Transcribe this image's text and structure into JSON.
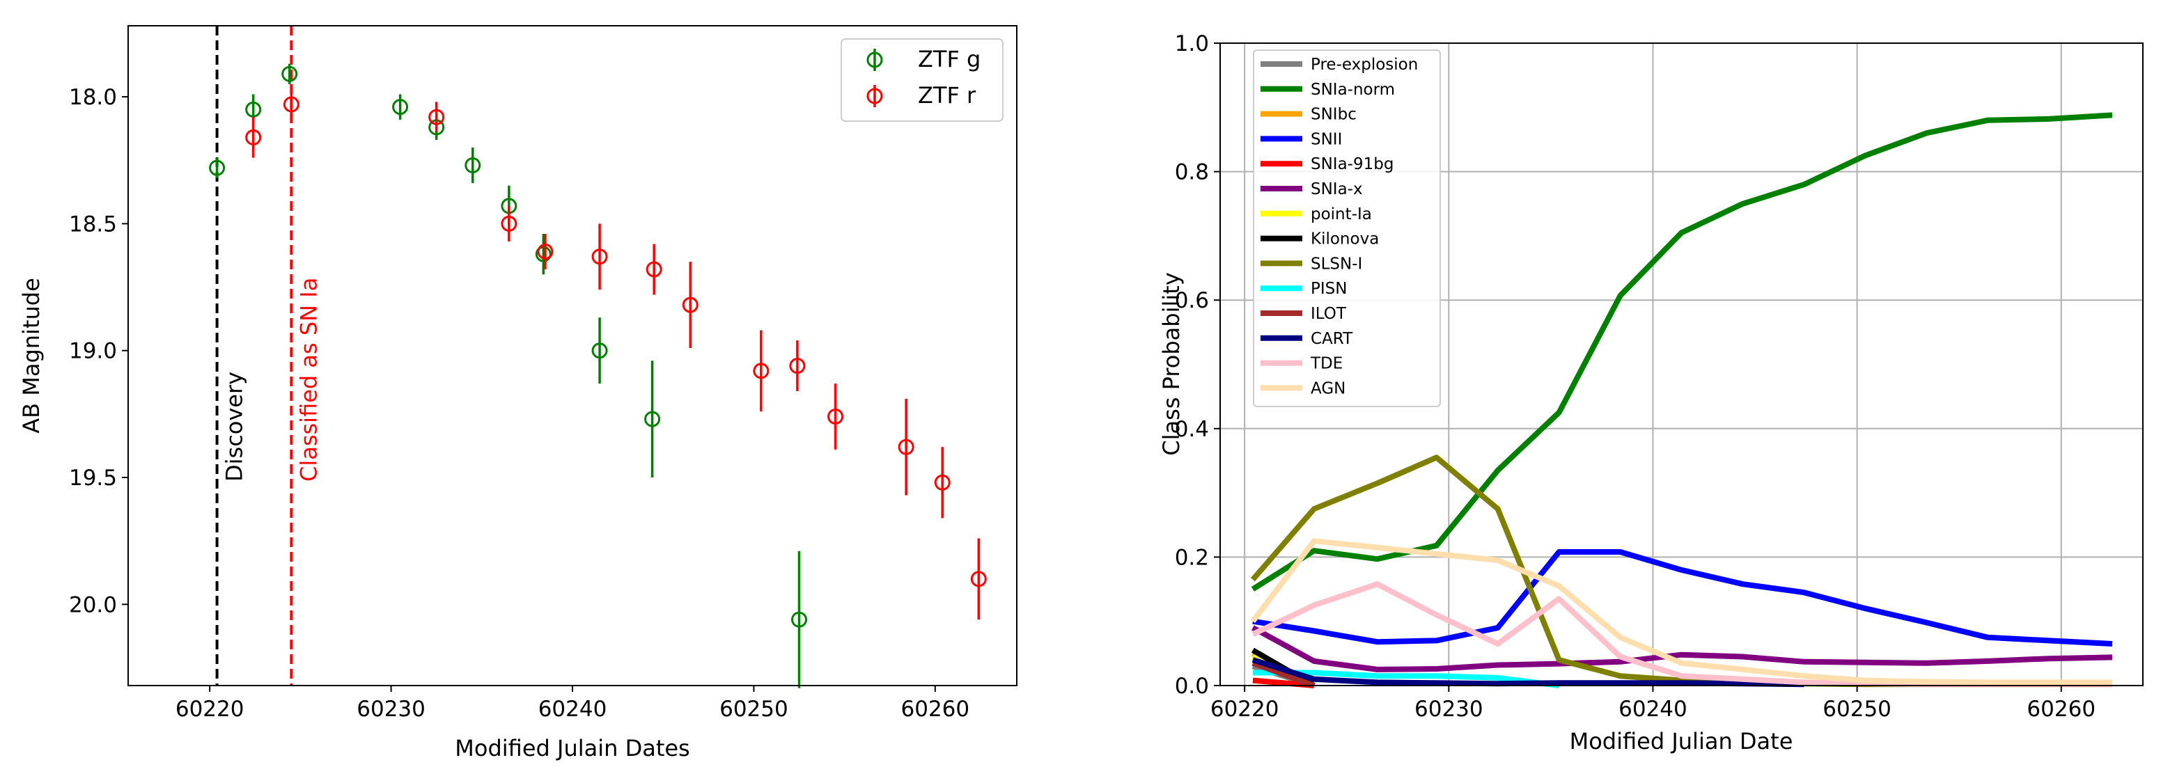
{
  "chart_data": [
    {
      "type": "scatter",
      "title": "",
      "xlabel": "Modified Julain Dates",
      "ylabel": "AB Magnitude",
      "xlim": [
        60215.5,
        60264.5
      ],
      "ylim": [
        20.32,
        17.72
      ],
      "y_inverted": true,
      "grid": false,
      "legend_position": "top-right",
      "xticks": [
        60220,
        60230,
        60240,
        60250,
        60260
      ],
      "yticks": [
        18.0,
        18.5,
        19.0,
        19.5,
        20.0
      ],
      "ytick_labels": [
        "18.0",
        "18.5",
        "19.0",
        "19.5",
        "20.0"
      ],
      "series": [
        {
          "name": "ZTF g",
          "color": "#008000",
          "points": [
            {
              "x": 60220.4,
              "y": 18.28,
              "err": 0.04
            },
            {
              "x": 60222.4,
              "y": 18.05,
              "err": 0.06
            },
            {
              "x": 60224.4,
              "y": 17.91,
              "err": 0.04
            },
            {
              "x": 60230.5,
              "y": 18.04,
              "err": 0.05
            },
            {
              "x": 60232.5,
              "y": 18.12,
              "err": 0.05
            },
            {
              "x": 60234.5,
              "y": 18.27,
              "err": 0.07
            },
            {
              "x": 60236.5,
              "y": 18.43,
              "err": 0.08
            },
            {
              "x": 60238.4,
              "y": 18.62,
              "err": 0.08
            },
            {
              "x": 60241.5,
              "y": 19.0,
              "err": 0.13
            },
            {
              "x": 60244.4,
              "y": 19.27,
              "err": 0.23
            },
            {
              "x": 60252.5,
              "y": 20.06,
              "err": 0.27
            }
          ]
        },
        {
          "name": "ZTF r",
          "color": "#ff0000",
          "points": [
            {
              "x": 60222.4,
              "y": 18.16,
              "err": 0.08
            },
            {
              "x": 60224.5,
              "y": 18.03,
              "err": 0.05
            },
            {
              "x": 60232.5,
              "y": 18.08,
              "err": 0.06
            },
            {
              "x": 60236.5,
              "y": 18.5,
              "err": 0.07
            },
            {
              "x": 60238.5,
              "y": 18.61,
              "err": 0.07
            },
            {
              "x": 60241.5,
              "y": 18.63,
              "err": 0.13
            },
            {
              "x": 60244.5,
              "y": 18.68,
              "err": 0.1
            },
            {
              "x": 60246.5,
              "y": 18.82,
              "err": 0.17
            },
            {
              "x": 60250.4,
              "y": 19.08,
              "err": 0.16
            },
            {
              "x": 60252.4,
              "y": 19.06,
              "err": 0.1
            },
            {
              "x": 60254.5,
              "y": 19.26,
              "err": 0.13
            },
            {
              "x": 60258.4,
              "y": 19.38,
              "err": 0.19
            },
            {
              "x": 60260.4,
              "y": 19.52,
              "err": 0.14
            },
            {
              "x": 60262.4,
              "y": 19.9,
              "err": 0.16
            }
          ]
        }
      ],
      "annotations": [
        {
          "text": "Discovery",
          "x": 60220.4,
          "color": "#000000",
          "line": "dashed"
        },
        {
          "text": "Classified as SN Ia",
          "x": 60224.5,
          "color": "#ff0000",
          "line": "dashed"
        }
      ]
    },
    {
      "type": "line",
      "title": "",
      "xlabel": "Modified Julian Date",
      "ylabel": "Class Probability",
      "xlim": [
        60218.8,
        60264.0
      ],
      "ylim": [
        0.0,
        1.0
      ],
      "grid": true,
      "legend_position": "top-left",
      "xticks": [
        60220,
        60230,
        60240,
        60250,
        60260
      ],
      "yticks": [
        0.0,
        0.2,
        0.4,
        0.6,
        0.8,
        1.0
      ],
      "ytick_labels": [
        "0.0",
        "0.2",
        "0.4",
        "0.6",
        "0.8",
        "1.0"
      ],
      "series": [
        {
          "name": "Pre-explosion",
          "color": "#808080",
          "x": [
            60220.4,
            60223.4
          ],
          "values": [
            0.03,
            0.0
          ]
        },
        {
          "name": "SNIa-norm",
          "color": "#008000",
          "x": [
            60220.4,
            60223.4,
            60226.5,
            60229.4,
            60232.4,
            60235.4,
            60238.4,
            60241.4,
            60244.4,
            60247.4,
            60250.4,
            60253.4,
            60256.4,
            60259.4,
            60262.5
          ],
          "values": [
            0.15,
            0.21,
            0.197,
            0.218,
            0.335,
            0.425,
            0.607,
            0.705,
            0.75,
            0.78,
            0.825,
            0.86,
            0.88,
            0.882,
            0.888
          ]
        },
        {
          "name": "SNIbc",
          "color": "#ffa500",
          "x": [
            60220.4,
            60223.4
          ],
          "values": [
            0.05,
            0.0
          ]
        },
        {
          "name": "SNII",
          "color": "#0000ff",
          "x": [
            60220.4,
            60223.4,
            60226.5,
            60229.4,
            60232.4,
            60235.4,
            60238.4,
            60241.4,
            60244.4,
            60247.4,
            60250.4,
            60253.4,
            60256.4,
            60259.4,
            60262.5
          ],
          "values": [
            0.1,
            0.085,
            0.068,
            0.07,
            0.09,
            0.208,
            0.208,
            0.18,
            0.158,
            0.145,
            0.12,
            0.098,
            0.075,
            0.07,
            0.065
          ]
        },
        {
          "name": "SNIa-91bg",
          "color": "#ff0000",
          "x": [
            60220.4,
            60223.4
          ],
          "values": [
            0.008,
            0.0
          ]
        },
        {
          "name": "SNIa-x",
          "color": "#800080",
          "x": [
            60220.4,
            60223.4,
            60226.5,
            60229.4,
            60232.4,
            60235.4,
            60238.4,
            60241.4,
            60244.4,
            60247.4,
            60250.4,
            60253.4,
            60256.4,
            60259.4,
            60262.5
          ],
          "values": [
            0.09,
            0.038,
            0.025,
            0.026,
            0.032,
            0.034,
            0.037,
            0.048,
            0.045,
            0.037,
            0.036,
            0.035,
            0.038,
            0.042,
            0.044
          ]
        },
        {
          "name": "point-Ia",
          "color": "#ffff00",
          "x": [
            60220.4,
            60223.4
          ],
          "values": [
            0.045,
            0.0
          ]
        },
        {
          "name": "Kilonova",
          "color": "#000000",
          "x": [
            60220.4,
            60223.4
          ],
          "values": [
            0.055,
            0.0
          ]
        },
        {
          "name": "SLSN-I",
          "color": "#808000",
          "x": [
            60220.4,
            60223.4,
            60226.5,
            60229.4,
            60232.4,
            60235.4,
            60238.4,
            60241.4,
            60244.4,
            60247.4,
            60250.4,
            60253.4,
            60256.4,
            60259.4,
            60262.5
          ],
          "values": [
            0.165,
            0.275,
            0.315,
            0.355,
            0.275,
            0.04,
            0.015,
            0.008,
            0.005,
            0.003,
            0.002,
            0.002,
            0.002,
            0.002,
            0.002
          ]
        },
        {
          "name": "PISN",
          "color": "#00ffff",
          "x": [
            60220.4,
            60223.4,
            60226.5,
            60229.4,
            60232.4,
            60235.4
          ],
          "values": [
            0.02,
            0.02,
            0.015,
            0.015,
            0.012,
            0.0
          ]
        },
        {
          "name": "ILOT",
          "color": "#a52a2a",
          "x": [
            60220.4,
            60223.4
          ],
          "values": [
            0.035,
            0.0
          ]
        },
        {
          "name": "CART",
          "color": "#000080",
          "x": [
            60220.4,
            60223.4,
            60226.5,
            60229.4,
            60232.4,
            60235.4,
            60238.4,
            60241.4,
            60244.4,
            60247.4
          ],
          "values": [
            0.04,
            0.01,
            0.005,
            0.004,
            0.003,
            0.004,
            0.004,
            0.004,
            0.003,
            0.002
          ]
        },
        {
          "name": "TDE",
          "color": "#ffc0cb",
          "x": [
            60220.4,
            60223.4,
            60226.5,
            60229.4,
            60232.4,
            60235.4,
            60238.4,
            60241.4,
            60244.4,
            60247.4,
            60250.4,
            60253.4,
            60256.4,
            60259.4,
            60262.5
          ],
          "values": [
            0.08,
            0.125,
            0.158,
            0.11,
            0.065,
            0.135,
            0.045,
            0.015,
            0.01,
            0.005,
            0.003,
            0.002,
            0.002,
            0.002,
            0.002
          ]
        },
        {
          "name": "AGN",
          "color": "#ffdead",
          "x": [
            60220.4,
            60223.4,
            60226.5,
            60229.4,
            60232.4,
            60235.4,
            60238.4,
            60241.4,
            60244.4,
            60247.4,
            60250.4,
            60253.4,
            60256.4,
            60259.4,
            60262.5
          ],
          "values": [
            0.1,
            0.225,
            0.215,
            0.205,
            0.195,
            0.155,
            0.075,
            0.035,
            0.025,
            0.015,
            0.008,
            0.006,
            0.005,
            0.005,
            0.005
          ]
        }
      ]
    }
  ]
}
